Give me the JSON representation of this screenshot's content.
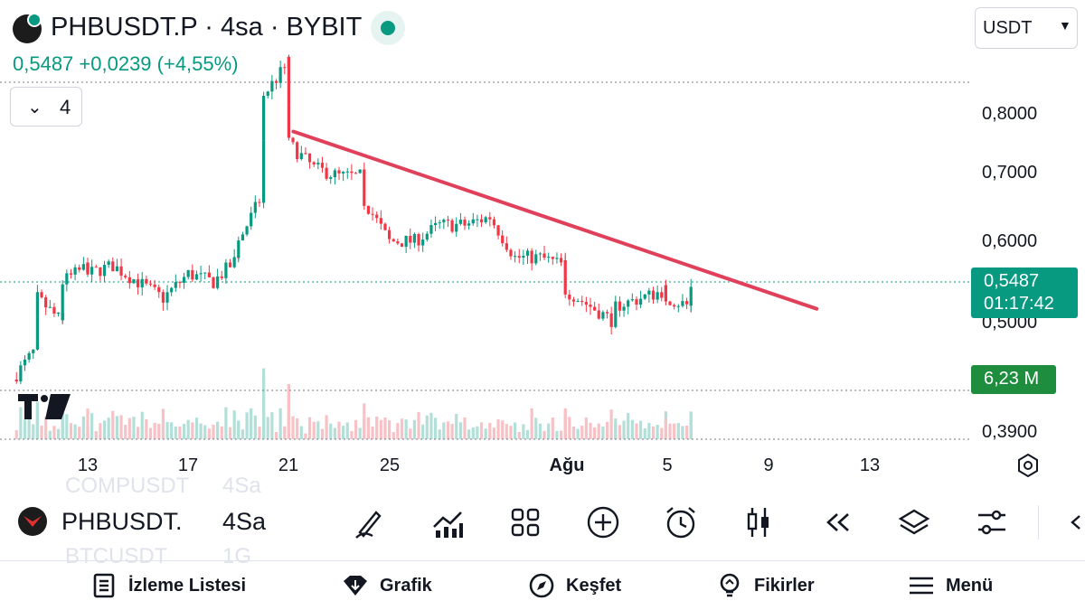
{
  "header": {
    "title": "PHBUSDT.P · 4sa · BYBIT",
    "price_line": "0,5487  +0,0239 (+4,55%)"
  },
  "indicator_toggle": {
    "count": "4"
  },
  "currency_select": {
    "value": "USDT"
  },
  "price_scale": {
    "labels": [
      "0,8000",
      "0,7000",
      "0,6000",
      "0,5000",
      "0,3900"
    ],
    "current_price": "0,5487",
    "countdown": "01:17:42",
    "volume": "6,23 M",
    "line_color": "#089981",
    "volume_color": "#1e8e3e"
  },
  "time_scale": {
    "labels": [
      "13",
      "17",
      "21",
      "25",
      "Ağu",
      "5",
      "9",
      "13"
    ]
  },
  "watermark": {
    "brand": "TV"
  },
  "ghost_symbols": [
    "COMPUSDT",
    "4Sa",
    "BTCUSDT",
    "1G"
  ],
  "symbol_bar": {
    "symbol": "PHBUSDT.",
    "timeframe": "4Sa",
    "tools": [
      "draw-pen-icon",
      "indicators-icon",
      "grid-layout-icon",
      "add-circle-icon",
      "alarm-clock-icon",
      "candles-icon",
      "replay-icon",
      "layers-icon",
      "settings-sliders-icon"
    ]
  },
  "bottom_nav": {
    "watchlist": "İzleme Listesi",
    "chart": "Grafik",
    "explore": "Keşfet",
    "ideas": "Fikirler",
    "menu": "Menü"
  },
  "colors": {
    "up": "#089981",
    "down": "#f23645",
    "trendline": "#e0405a"
  },
  "chart_data": {
    "type": "candlestick",
    "symbol": "PHBUSDT.P",
    "interval": "4sa",
    "exchange": "BYBIT",
    "y_axis_ticks": [
      0.8,
      0.7,
      0.6,
      0.5,
      0.39
    ],
    "current_price": 0.5487,
    "change": 0.0239,
    "change_pct": 4.55,
    "trendline": {
      "from": {
        "date": "Jul 21",
        "price": 0.735
      },
      "to": {
        "date": "Aug 11",
        "price": 0.517
      }
    },
    "close_path": [
      [
        "Jul 10",
        0.43
      ],
      [
        "Jul 11",
        0.47
      ],
      [
        "Jul 11",
        0.53
      ],
      [
        "Jul 12",
        0.5
      ],
      [
        "Jul 12",
        0.55
      ],
      [
        "Jul 13",
        0.57
      ],
      [
        "Jul 13",
        0.56
      ],
      [
        "Jul 14",
        0.57
      ],
      [
        "Jul 15",
        0.55
      ],
      [
        "Jul 16",
        0.53
      ],
      [
        "Jul 17",
        0.56
      ],
      [
        "Jul 18",
        0.55
      ],
      [
        "Jul 19",
        0.58
      ],
      [
        "Jul 19",
        0.6
      ],
      [
        "Jul 20",
        0.66
      ],
      [
        "Jul 20",
        0.78
      ],
      [
        "Jul 21",
        0.82
      ],
      [
        "Jul 21",
        0.72
      ],
      [
        "Jul 22",
        0.69
      ],
      [
        "Jul 23",
        0.68
      ],
      [
        "Jul 24",
        0.68
      ],
      [
        "Jul 24",
        0.65
      ],
      [
        "Jul 25",
        0.6
      ],
      [
        "Jul 26",
        0.6
      ],
      [
        "Jul 27",
        0.62
      ],
      [
        "Jul 28",
        0.62
      ],
      [
        "Jul 29",
        0.63
      ],
      [
        "Jul 30",
        0.58
      ],
      [
        "Jul 31",
        0.58
      ],
      [
        "Aug 1",
        0.57
      ],
      [
        "Aug 1",
        0.54
      ],
      [
        "Aug 2",
        0.52
      ],
      [
        "Aug 3",
        0.5
      ],
      [
        "Aug 3",
        0.52
      ],
      [
        "Aug 4",
        0.53
      ],
      [
        "Aug 5",
        0.54
      ],
      [
        "Aug 5",
        0.53
      ],
      [
        "Aug 6",
        0.52
      ],
      [
        "Aug 6",
        0.5487
      ]
    ]
  }
}
